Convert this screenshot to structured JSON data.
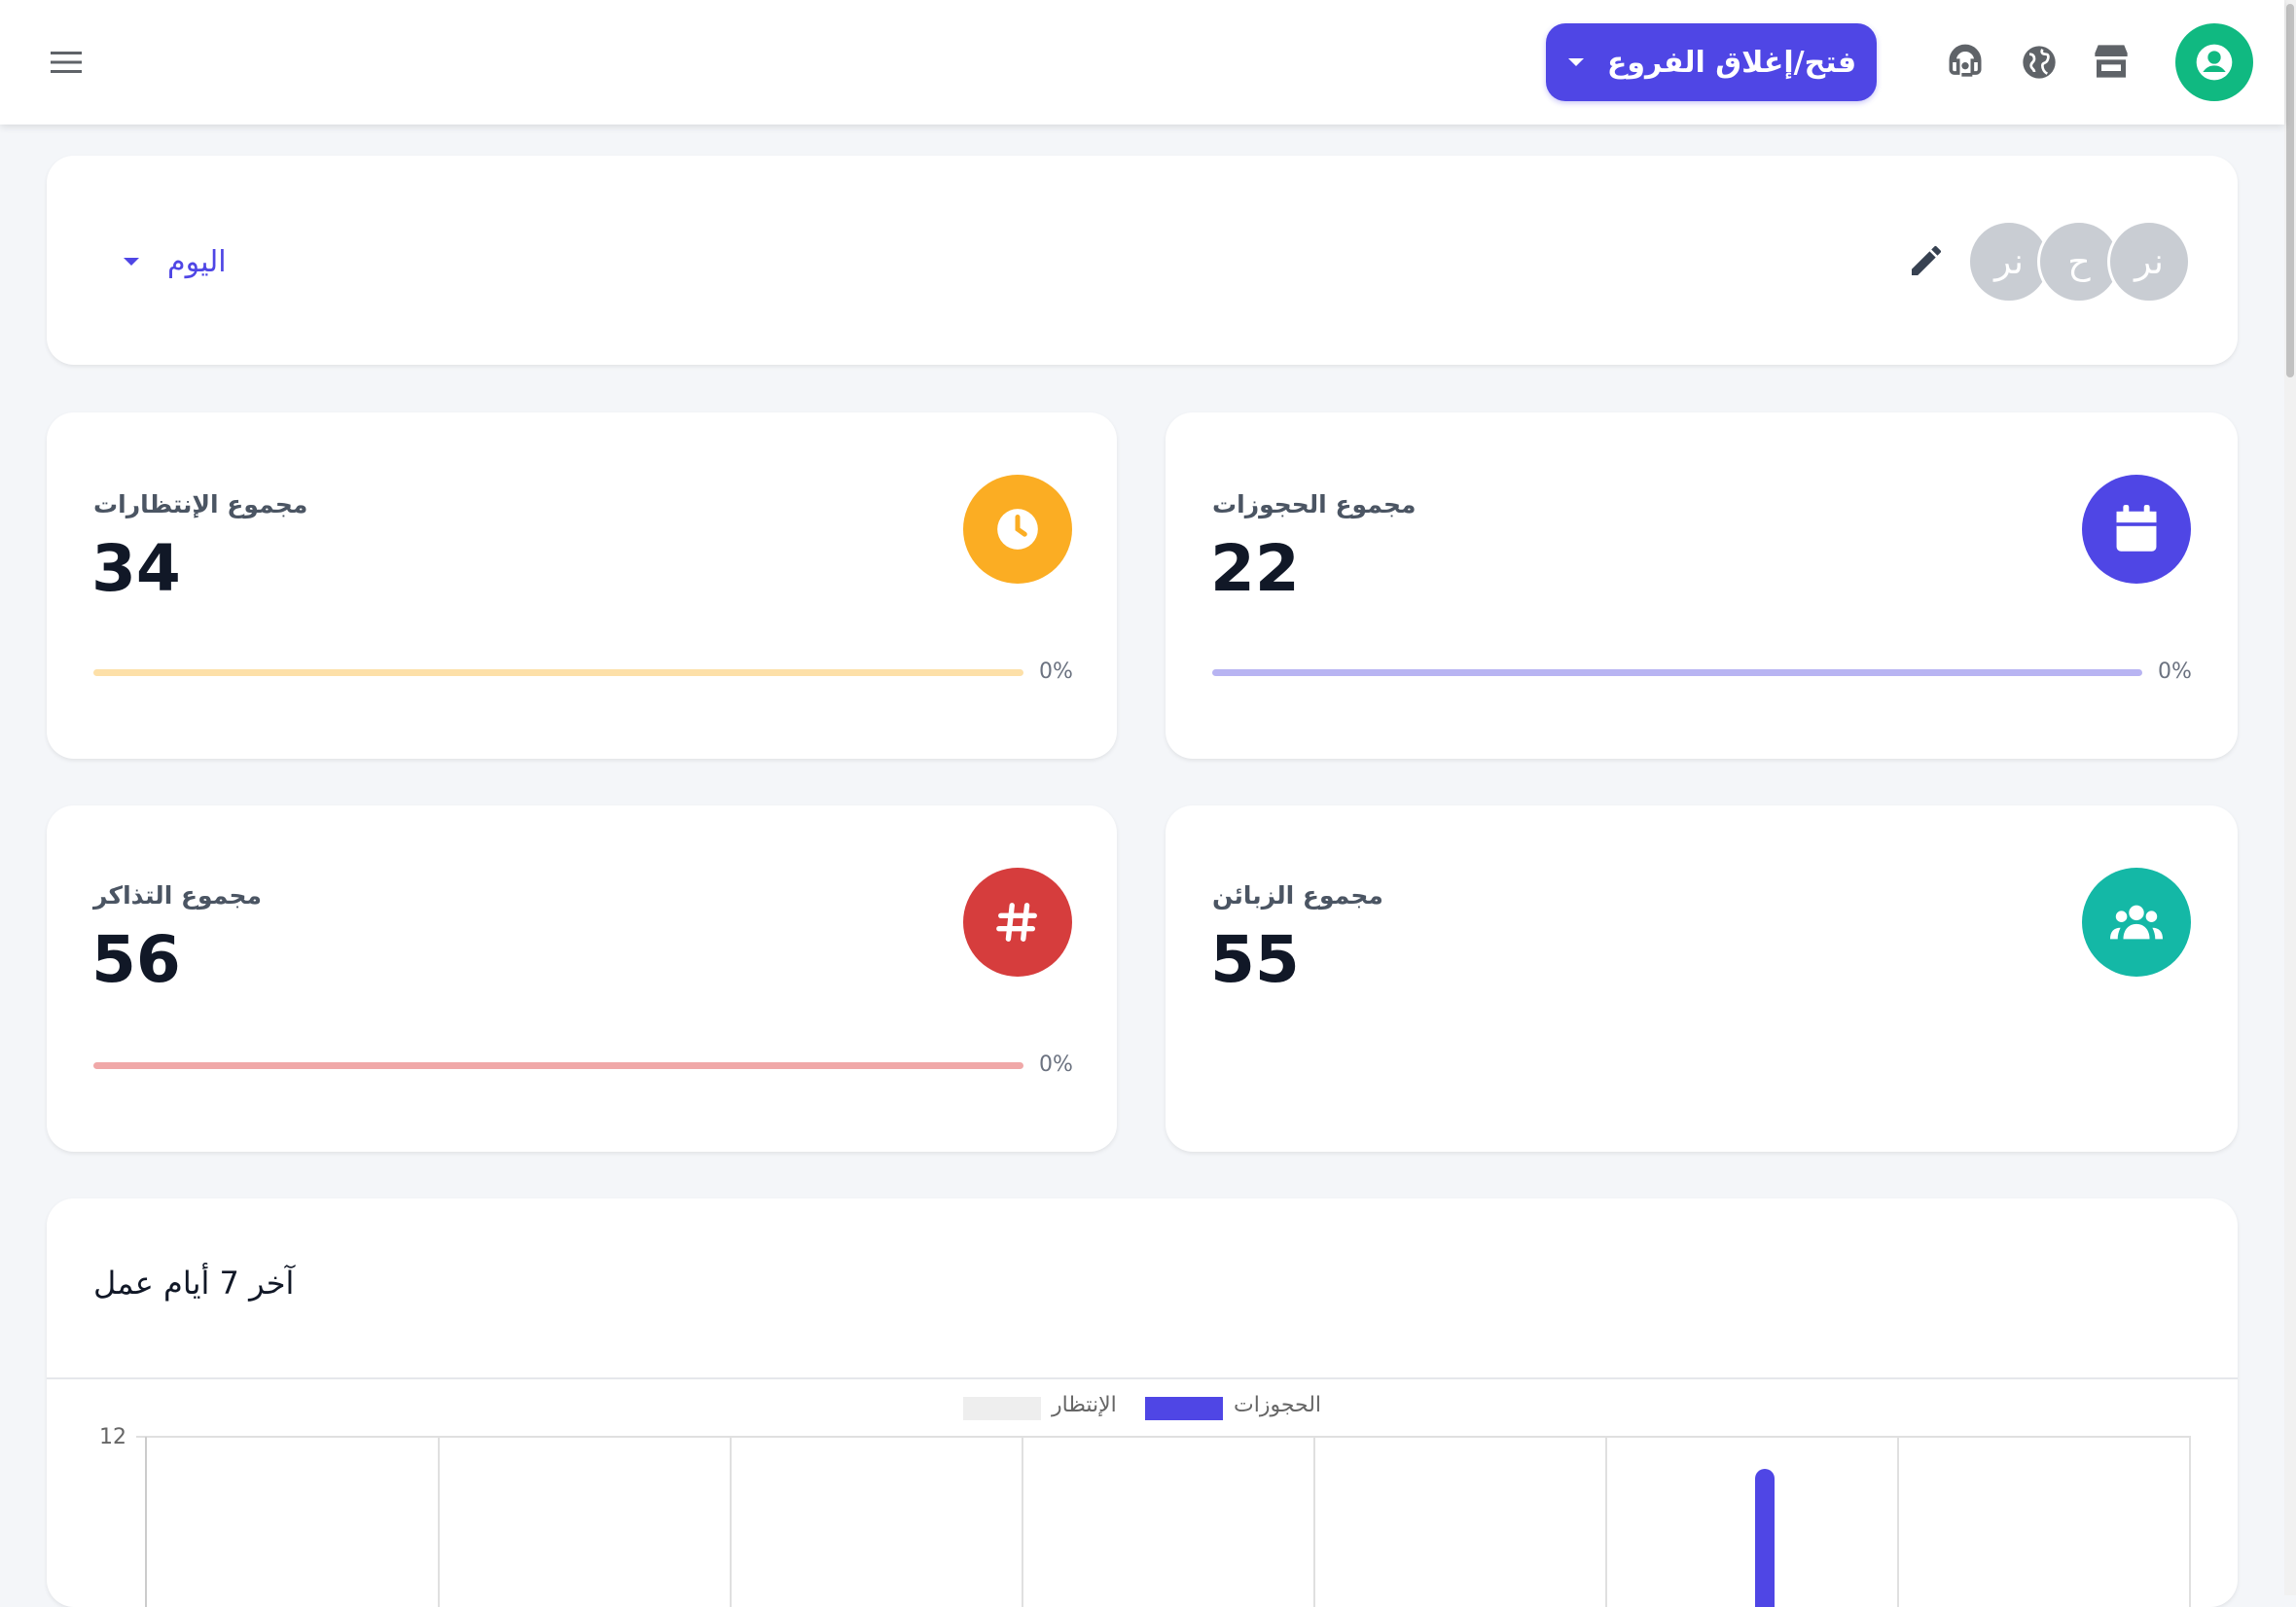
{
  "header": {
    "branches_button": "فتح/إغلاق الفروع",
    "icons": [
      "menu-icon",
      "headset-icon",
      "globe-icon",
      "store-icon",
      "account-circle-icon"
    ]
  },
  "filter": {
    "period": "اليوم",
    "chips": [
      "نر",
      "ح",
      "نر"
    ],
    "edit_icon": "pencil-icon"
  },
  "stats": {
    "waitings": {
      "title": "مجموع الإنتظارات",
      "value": "34",
      "percent": "0%",
      "color": "#fbad23",
      "icon": "clock-icon"
    },
    "bookings": {
      "title": "مجموع الحجوزات",
      "value": "22",
      "percent": "0%",
      "color": "#4f46e5",
      "icon": "calendar-icon"
    },
    "tickets": {
      "title": "مجموع التذاكر",
      "value": "56",
      "percent": "0%",
      "color": "#d63d3d",
      "icon": "hash-icon"
    },
    "customers": {
      "title": "مجموع الزبائن",
      "value": "55",
      "color": "#14b8a6",
      "icon": "group-icon"
    }
  },
  "chart": {
    "title": "آخر 7 أيام عمل"
  },
  "chart_data": {
    "type": "bar",
    "legend": [
      "الحجوزات",
      "الإنتظار"
    ],
    "series": [
      {
        "name": "الحجوزات",
        "color": "#4f46e5"
      },
      {
        "name": "الإنتظار",
        "color": "#eeeeee"
      }
    ],
    "ytick_top": "12",
    "grid": true
  }
}
